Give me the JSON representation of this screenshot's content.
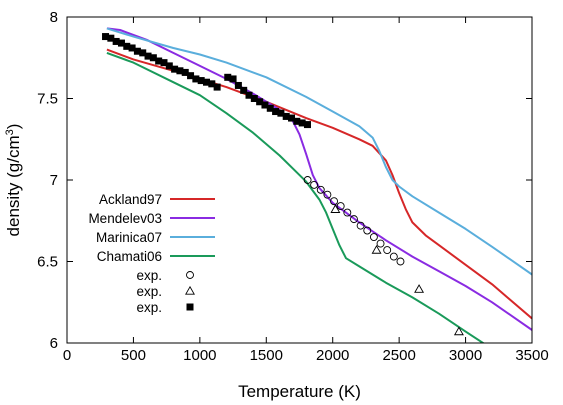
{
  "chart_data": {
    "type": "line",
    "xlabel": "Temperature (K)",
    "ylabel_parts": [
      "density (g/cm",
      "3",
      ")"
    ],
    "xlim": [
      0,
      3500
    ],
    "ylim": [
      6,
      8
    ],
    "xticks": [
      0,
      500,
      1000,
      1500,
      2000,
      2500,
      3000,
      3500
    ],
    "yticks": [
      6,
      6.5,
      7,
      7.5,
      8
    ],
    "legend_position": "left",
    "series": [
      {
        "name": "Ackland97",
        "kind": "line",
        "color": "#d62728",
        "x": [
          300,
          500,
          800,
          1000,
          1200,
          1500,
          1800,
          2000,
          2200,
          2300,
          2400,
          2450,
          2500,
          2550,
          2600,
          2700,
          2800,
          3000,
          3200,
          3500
        ],
        "y": [
          7.8,
          7.74,
          7.67,
          7.62,
          7.57,
          7.48,
          7.38,
          7.32,
          7.25,
          7.21,
          7.12,
          7.03,
          6.92,
          6.82,
          6.74,
          6.66,
          6.6,
          6.48,
          6.36,
          6.15
        ]
      },
      {
        "name": "Mendelev03",
        "kind": "line",
        "color": "#8a2be2",
        "x": [
          300,
          400,
          600,
          800,
          1000,
          1200,
          1400,
          1600,
          1700,
          1750,
          1800,
          1850,
          1900,
          2000,
          2200,
          2400,
          2600,
          2800,
          3000,
          3200,
          3500
        ],
        "y": [
          7.93,
          7.92,
          7.86,
          7.78,
          7.7,
          7.62,
          7.53,
          7.43,
          7.36,
          7.28,
          7.16,
          7.03,
          6.95,
          6.86,
          6.74,
          6.63,
          6.53,
          6.44,
          6.35,
          6.25,
          6.08
        ]
      },
      {
        "name": "Marinica07",
        "kind": "line",
        "color": "#5aaedc",
        "x": [
          300,
          500,
          800,
          1000,
          1200,
          1500,
          1800,
          2000,
          2200,
          2300,
          2350,
          2400,
          2450,
          2500,
          2600,
          2800,
          3000,
          3200,
          3500
        ],
        "y": [
          7.93,
          7.88,
          7.81,
          7.77,
          7.72,
          7.63,
          7.51,
          7.42,
          7.33,
          7.26,
          7.18,
          7.08,
          7.0,
          6.96,
          6.9,
          6.8,
          6.7,
          6.59,
          6.42
        ]
      },
      {
        "name": "Chamati06",
        "kind": "line",
        "color": "#1a9a5a",
        "x": [
          300,
          500,
          800,
          1000,
          1200,
          1400,
          1600,
          1700,
          1800,
          1900,
          1950,
          2000,
          2050,
          2100,
          2200,
          2400,
          2600,
          2800,
          3000,
          3150
        ],
        "y": [
          7.78,
          7.72,
          7.6,
          7.52,
          7.41,
          7.29,
          7.15,
          7.07,
          6.99,
          6.88,
          6.8,
          6.7,
          6.6,
          6.52,
          6.47,
          6.37,
          6.28,
          6.18,
          6.07,
          5.99
        ]
      },
      {
        "name": "exp.",
        "kind": "marker",
        "marker": "circle",
        "color": "#000000",
        "x": [
          1811,
          1860,
          1910,
          1960,
          2010,
          2060,
          2110,
          2160,
          2210,
          2260,
          2310,
          2360,
          2410,
          2460,
          2510
        ],
        "y": [
          7.0,
          6.97,
          6.94,
          6.91,
          6.87,
          6.84,
          6.8,
          6.76,
          6.72,
          6.69,
          6.65,
          6.61,
          6.57,
          6.53,
          6.5
        ]
      },
      {
        "name": "exp.",
        "kind": "marker",
        "marker": "triangle",
        "color": "#000000",
        "x": [
          2020,
          2330,
          2650,
          2950
        ],
        "y": [
          6.82,
          6.57,
          6.33,
          6.07
        ]
      },
      {
        "name": "exp.",
        "kind": "marker",
        "marker": "square",
        "color": "#000000",
        "x": [
          290,
          330,
          370,
          410,
          450,
          490,
          530,
          570,
          610,
          650,
          690,
          730,
          770,
          810,
          850,
          890,
          930,
          970,
          1010,
          1050,
          1090,
          1130,
          1210,
          1250,
          1290,
          1330,
          1370,
          1410,
          1450,
          1490,
          1530,
          1570,
          1610,
          1650,
          1690,
          1730,
          1770,
          1810
        ],
        "y": [
          7.88,
          7.87,
          7.85,
          7.84,
          7.82,
          7.81,
          7.79,
          7.78,
          7.76,
          7.75,
          7.73,
          7.72,
          7.7,
          7.68,
          7.67,
          7.66,
          7.64,
          7.62,
          7.61,
          7.6,
          7.59,
          7.57,
          7.63,
          7.62,
          7.58,
          7.55,
          7.52,
          7.5,
          7.48,
          7.46,
          7.44,
          7.42,
          7.41,
          7.39,
          7.38,
          7.36,
          7.35,
          7.34
        ]
      }
    ]
  }
}
